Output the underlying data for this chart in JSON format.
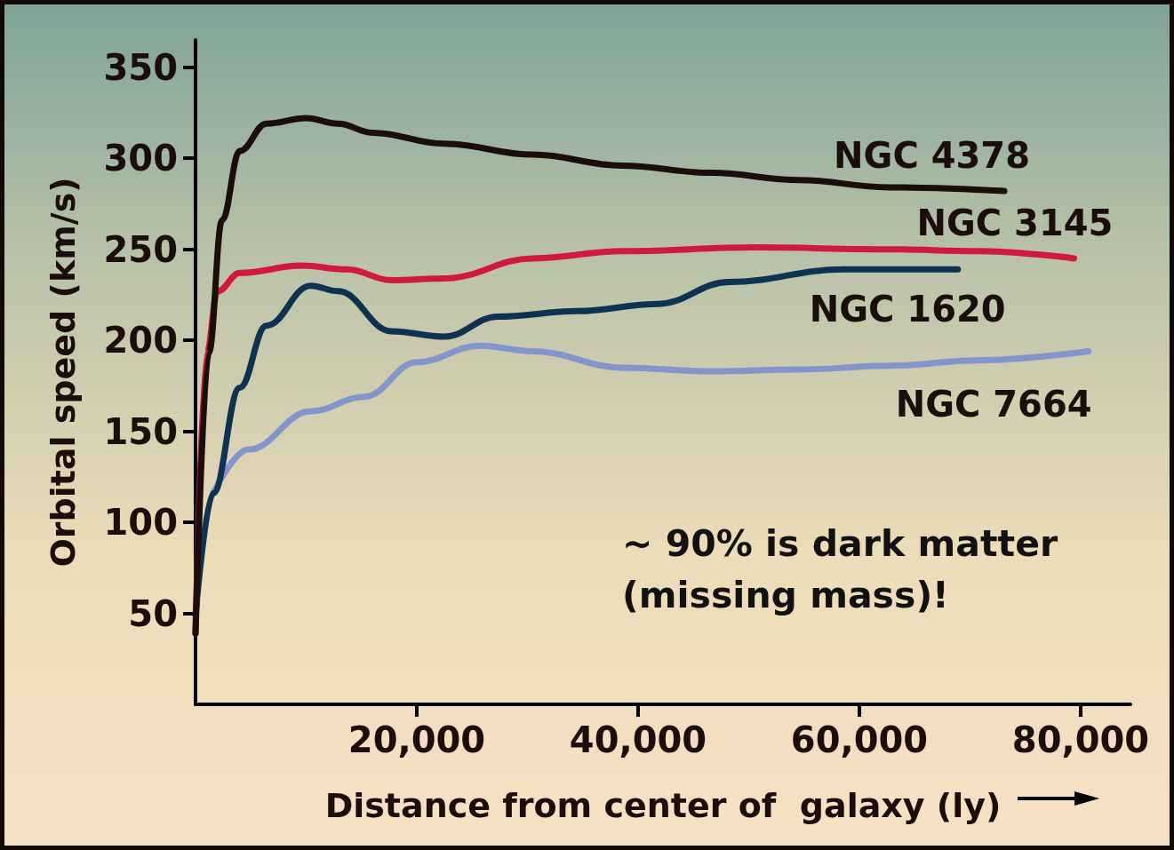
{
  "chart_data": {
    "type": "line",
    "xlabel": "Distance from center of  galaxy (ly)",
    "ylabel": "Orbital speed (km/s)",
    "xlim": [
      0,
      84500
    ],
    "ylim": [
      0,
      365
    ],
    "xticks": [
      {
        "value": 20000,
        "label": "20,000"
      },
      {
        "value": 40000,
        "label": "40,000"
      },
      {
        "value": 60000,
        "label": "60,000"
      },
      {
        "value": 80000,
        "label": "80,000"
      }
    ],
    "yticks": [
      50,
      100,
      150,
      200,
      250,
      300,
      350
    ],
    "grid": false,
    "legend": false,
    "marker": "none",
    "line_style": "solid",
    "annotations": [
      "~ 90% is dark matter\n(missing mass)!"
    ],
    "series": [
      {
        "name": "NGC 4378",
        "color": "#1a0d0a",
        "x": [
          0,
          1200,
          2400,
          4000,
          6400,
          10000,
          12900,
          16000,
          22500,
          30500,
          38500,
          46600,
          54600,
          62700,
          73100
        ],
        "values": [
          39,
          193,
          266,
          304,
          319,
          322,
          319,
          314,
          308,
          302,
          296,
          292,
          288,
          284,
          282
        ]
      },
      {
        "name": "NGC 3145",
        "color": "#d0193f",
        "x": [
          0,
          1000,
          2000,
          4000,
          9600,
          13700,
          17700,
          22500,
          30500,
          38600,
          50600,
          62700,
          70700,
          79400
        ],
        "values": [
          39,
          193,
          227,
          237,
          241,
          239,
          233,
          234,
          245,
          249,
          251,
          250,
          249,
          245
        ]
      },
      {
        "name": "NGC 1620",
        "color": "#0d3350",
        "x": [
          0,
          1600,
          4000,
          6400,
          10400,
          12900,
          17700,
          22500,
          27300,
          34500,
          41800,
          48200,
          58600,
          68900
        ],
        "values": [
          49,
          116,
          174,
          208,
          230,
          227,
          205,
          202,
          213,
          216,
          220,
          232,
          239,
          239
        ]
      },
      {
        "name": "NGC 7664",
        "color": "#8296cc",
        "x": [
          1600,
          4800,
          10400,
          15300,
          20000,
          25700,
          30500,
          38600,
          46600,
          54600,
          62700,
          70700,
          80700
        ],
        "values": [
          116,
          140,
          161,
          169,
          188,
          197,
          194,
          185,
          183,
          184,
          186,
          189,
          194
        ]
      }
    ]
  }
}
